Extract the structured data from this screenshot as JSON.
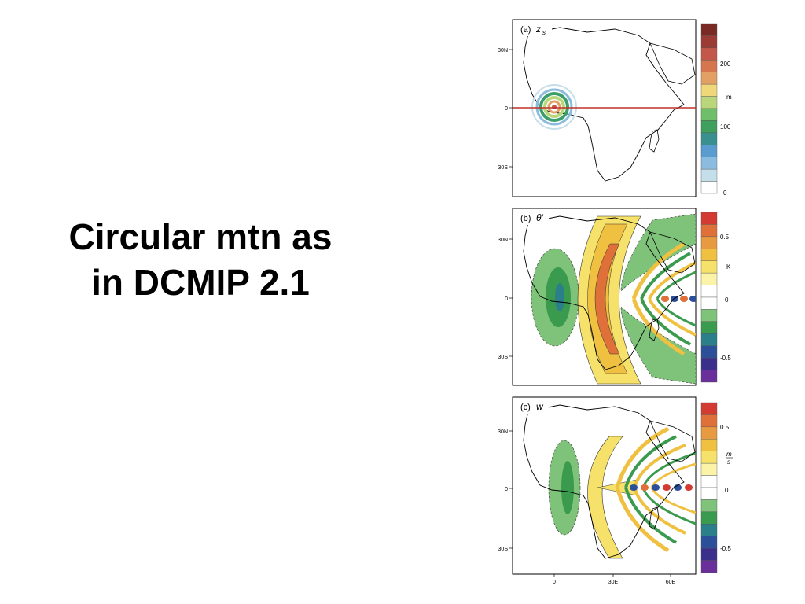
{
  "slide": {
    "title_lines": [
      "Circular mtn as",
      "in DCMIP 2.1"
    ]
  },
  "panels": [
    {
      "label": "(a)",
      "variable": "z",
      "variable_sub": "s",
      "unit": "m",
      "y_ticks": [
        "30N",
        "0",
        "30S"
      ],
      "colorbar_labels": [
        "200",
        "100",
        "0"
      ],
      "colorbar_colors": [
        "#7a2a24",
        "#9c3b33",
        "#c2574a",
        "#d6764f",
        "#e3a065",
        "#f0d77a",
        "#b9d67a",
        "#6fbf6a",
        "#3f9f5c",
        "#3a8f8f",
        "#5a9bd0",
        "#8bbce0",
        "#c5dfea",
        "#ffffff"
      ]
    },
    {
      "label": "(b)",
      "variable": "θ'",
      "unit": "K",
      "y_ticks": [
        "30N",
        "0",
        "30S"
      ],
      "colorbar_labels": [
        "0.5",
        "0",
        "-0.5"
      ],
      "colorbar_colors": [
        "#d23a32",
        "#e0703a",
        "#e89a40",
        "#f0c040",
        "#f6e26a",
        "#fbf3a8",
        "#ffffff",
        "#ffffff",
        "#7fc37a",
        "#3a9a4e",
        "#2a7f8a",
        "#2c4f9a",
        "#3a2f8a",
        "#6a2f9a"
      ]
    },
    {
      "label": "(c)",
      "variable": "w",
      "unit_num": "m",
      "unit_den": "s",
      "y_ticks": [
        "30N",
        "0",
        "30S"
      ],
      "x_ticks": [
        "0",
        "30E",
        "60E"
      ],
      "colorbar_labels": [
        "0.5",
        "0",
        "-0.5"
      ],
      "colorbar_colors": [
        "#d23a32",
        "#e0703a",
        "#e89a40",
        "#f0c040",
        "#f6e26a",
        "#fbf3a8",
        "#ffffff",
        "#ffffff",
        "#7fc37a",
        "#3a9a4e",
        "#2a7f8a",
        "#2c4f9a",
        "#3a2f8a",
        "#6a2f9a"
      ]
    }
  ]
}
